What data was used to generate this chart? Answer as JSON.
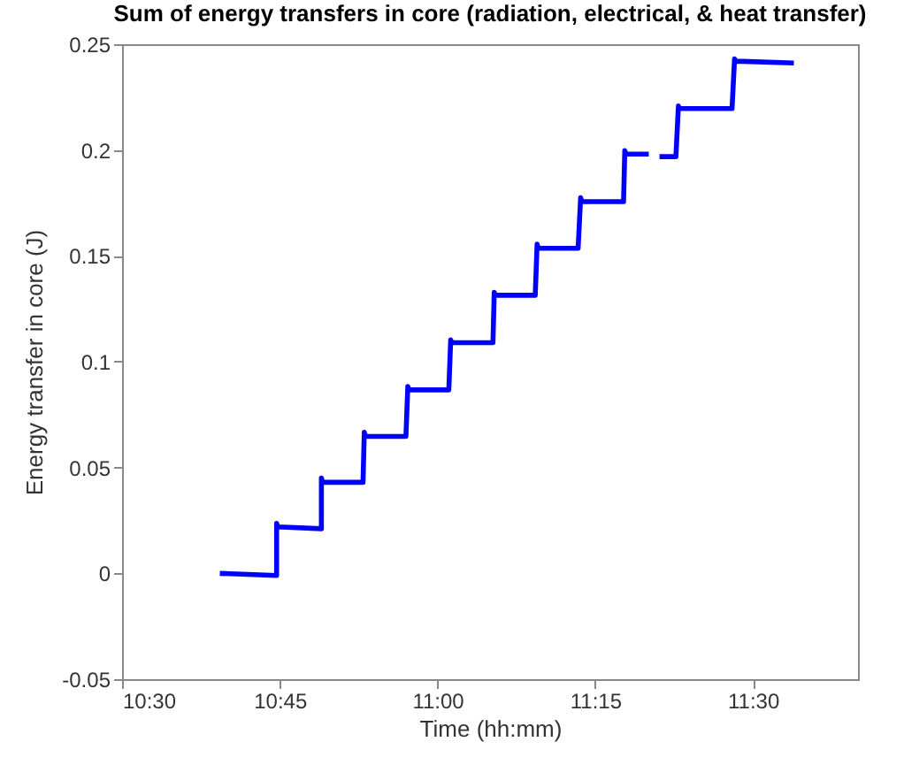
{
  "chart_data": {
    "type": "line",
    "title": "Sum of energy transfers in core (radiation, electrical, & heat transfer)",
    "xlabel": "Time (hh:mm)",
    "ylabel": "Energy transfer in core (J)",
    "x": [
      10.655,
      10.745,
      10.745,
      10.747,
      10.816,
      10.816,
      10.818,
      10.882,
      10.884,
      10.886,
      10.95,
      10.953,
      10.955,
      11.018,
      11.021,
      11.023,
      11.088,
      11.09,
      11.092,
      11.155,
      11.158,
      11.16,
      11.223,
      11.227,
      11.229,
      11.295,
      11.297,
      11.299,
      11.335,
      11.343,
      11.352,
      11.378,
      11.382,
      11.384,
      11.467,
      11.471,
      11.473,
      11.565
    ],
    "series": [
      {
        "color": "#0000ff",
        "values": [
          0,
          -0.001,
          0.0236,
          0.022,
          0.0211,
          0.045,
          0.043,
          0.043,
          0.0667,
          0.0647,
          0.0647,
          0.0883,
          0.0867,
          0.0867,
          0.1103,
          0.109,
          0.109,
          0.1328,
          0.1314,
          0.1314,
          0.1556,
          0.1536,
          0.1536,
          0.1775,
          0.1756,
          0.1756,
          0.1997,
          0.1981,
          0.1981,
          null,
          0.1969,
          0.1969,
          0.2208,
          0.2196,
          0.2196,
          0.2431,
          0.242,
          0.2411
        ]
      }
    ],
    "xlim": [
      10.5,
      11.6667
    ],
    "xticks": [
      {
        "value": 10.5,
        "label": "10:30"
      },
      {
        "value": 10.75,
        "label": "10:45"
      },
      {
        "value": 11,
        "label": "11:00"
      },
      {
        "value": 11.25,
        "label": "11:15"
      },
      {
        "value": 11.5,
        "label": "11:30"
      }
    ],
    "ylim": [
      -0.05,
      0.25
    ],
    "yticks": [
      -0.05,
      0,
      0.05,
      0.1,
      0.15,
      0.2,
      0.25
    ],
    "grid": false,
    "legend": false,
    "marker": "none",
    "line_style": "solid"
  }
}
